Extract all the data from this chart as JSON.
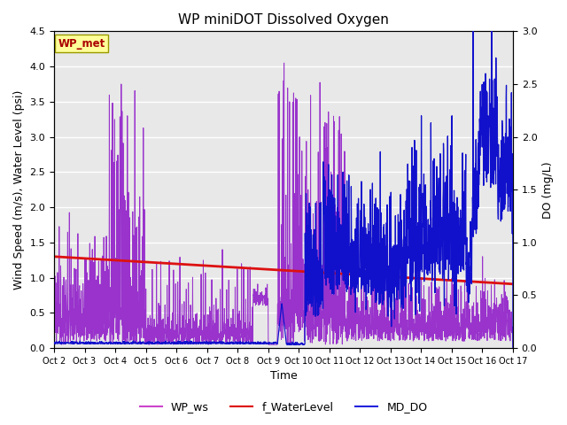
{
  "title": "WP miniDOT Dissolved Oxygen",
  "ylabel_left": "Wind Speed (m/s), Water Level (psi)",
  "ylabel_right": "DO (mg/L)",
  "xlabel": "Time",
  "ylim_left": [
    0,
    4.5
  ],
  "ylim_right": [
    0.0,
    3.0
  ],
  "xlim": [
    0,
    15
  ],
  "x_tick_labels": [
    "Oct 2",
    "Oct 3",
    "Oct 4",
    "Oct 5",
    "Oct 6",
    "Oct 7",
    "Oct 8",
    "Oct 9",
    "Oct 10",
    "Oct 11",
    "Oct 12",
    "Oct 13",
    "Oct 14",
    "Oct 15",
    "Oct 16",
    "Oct 17"
  ],
  "x_tick_positions": [
    0,
    1,
    2,
    3,
    4,
    5,
    6,
    7,
    8,
    9,
    10,
    11,
    12,
    13,
    14,
    15
  ],
  "legend_entries": [
    "WP_ws",
    "f_WaterLevel",
    "MD_DO"
  ],
  "legend_colors": [
    "#CC44CC",
    "#DD0000",
    "#2222DD"
  ],
  "wp_met_label": "WP_met",
  "wp_met_color": "#AA0000",
  "wp_met_bg": "#FFFF99",
  "background_color": "#E8E8E8",
  "grid_color": "#FFFFFF",
  "wp_ws_color": "#9933CC",
  "f_water_color": "#DD1111",
  "md_do_color": "#1111CC",
  "fig_width": 6.4,
  "fig_height": 4.8,
  "dpi": 100
}
